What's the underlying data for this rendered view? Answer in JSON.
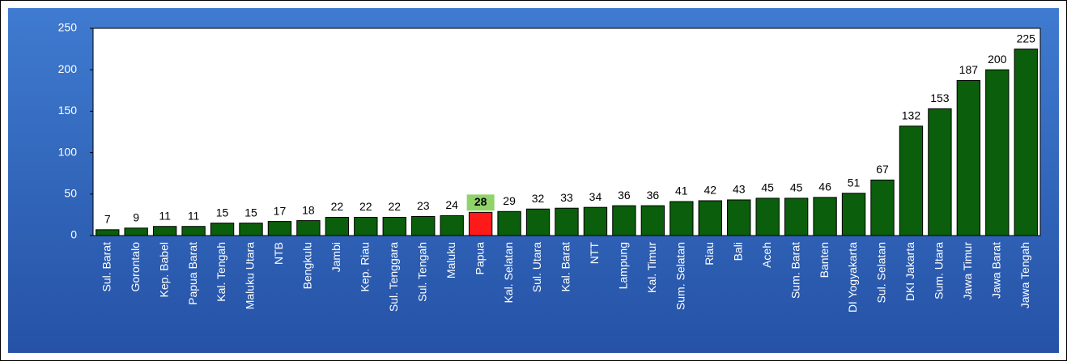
{
  "chart_data": {
    "type": "bar",
    "categories": [
      "Sul. Barat",
      "Gorontalo",
      "Kep. Babel",
      "Papua Barat",
      "Kal. Tengah",
      "Maluku Utara",
      "NTB",
      "Bengkulu",
      "Jambi",
      "Kep. Riau",
      "Sul. Tenggara",
      "Sul. Tengah",
      "Maluku",
      "Papua",
      "Kal. Selatan",
      "Sul. Utara",
      "Kal. Barat",
      "NTT",
      "Lampung",
      "Kal. Timur",
      "Sum. Selatan",
      "Riau",
      "Bali",
      "Aceh",
      "Sum. Barat",
      "Banten",
      "DI Yogyakarta",
      "Sul. Selatan",
      "DKI Jakarta",
      "Sum. Utara",
      "Jawa Timur",
      "Jawa Barat",
      "Jawa Tengah"
    ],
    "values": [
      7,
      9,
      11,
      11,
      15,
      15,
      17,
      18,
      22,
      22,
      22,
      23,
      24,
      28,
      29,
      32,
      33,
      34,
      36,
      36,
      41,
      42,
      43,
      45,
      45,
      46,
      51,
      67,
      132,
      153,
      187,
      200,
      225
    ],
    "color": "#0b5e0b",
    "colors": [
      "#0b5e0b",
      "#0b5e0b",
      "#0b5e0b",
      "#0b5e0b",
      "#0b5e0b",
      "#0b5e0b",
      "#0b5e0b",
      "#0b5e0b",
      "#0b5e0b",
      "#0b5e0b",
      "#0b5e0b",
      "#0b5e0b",
      "#0b5e0b",
      "#ff1a1a",
      "#0b5e0b",
      "#0b5e0b",
      "#0b5e0b",
      "#0b5e0b",
      "#0b5e0b",
      "#0b5e0b",
      "#0b5e0b",
      "#0b5e0b",
      "#0b5e0b",
      "#0b5e0b",
      "#0b5e0b",
      "#0b5e0b",
      "#0b5e0b",
      "#0b5e0b",
      "#0b5e0b",
      "#0b5e0b",
      "#0b5e0b",
      "#0b5e0b",
      "#0b5e0b"
    ],
    "ylim": [
      0,
      250
    ],
    "yticks": [
      0,
      50,
      100,
      150,
      200,
      250
    ],
    "grid": false
  }
}
